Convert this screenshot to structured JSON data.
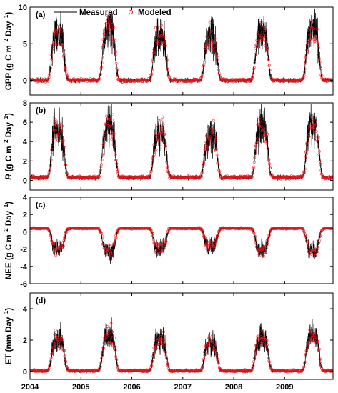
{
  "legend": {
    "measured_label": "Measured",
    "modeled_label": "Modeled",
    "measured_color": "#000000",
    "modeled_color": "#e8161b"
  },
  "chart_data": [
    {
      "type": "line",
      "panel_tag": "(a)",
      "ylabel_parts": [
        "GPP (g C m",
        "−2",
        " Day",
        "−1",
        ")"
      ],
      "ylim": [
        -2,
        10
      ],
      "yticks": [
        0,
        5,
        10
      ],
      "peak": 6.3,
      "base": 0.0,
      "series": [
        {
          "name": "Measured",
          "style": "line"
        },
        {
          "name": "Modeled",
          "style": "marker"
        }
      ]
    },
    {
      "type": "line",
      "panel_tag": "(b)",
      "ylabel_parts": [
        "R",
        " (g C m",
        "−2",
        " Day",
        "−1",
        ")"
      ],
      "ylim": [
        -1,
        8
      ],
      "yticks": [
        0,
        2,
        4,
        6,
        8
      ],
      "peak": 5.2,
      "base": 0.3,
      "series": [
        {
          "name": "Measured",
          "style": "line"
        },
        {
          "name": "Modeled",
          "style": "marker"
        }
      ]
    },
    {
      "type": "line",
      "panel_tag": "(c)",
      "ylabel_parts": [
        "NEE (g C m",
        "−2",
        " Day",
        "−1",
        ")"
      ],
      "ylim": [
        -6,
        4
      ],
      "yticks": [
        -6,
        -4,
        -2,
        0,
        2,
        4
      ],
      "peak": -2.0,
      "base": 0.4,
      "series": [
        {
          "name": "Measured",
          "style": "line"
        },
        {
          "name": "Modeled",
          "style": "marker"
        }
      ]
    },
    {
      "type": "line",
      "panel_tag": "(d)",
      "ylabel_parts": [
        "ET (mm Day",
        "−1",
        ")"
      ],
      "ylim": [
        -0.5,
        5
      ],
      "yticks": [
        0,
        2,
        4
      ],
      "peak": 2.1,
      "base": 0.05,
      "series": [
        {
          "name": "Measured",
          "style": "line"
        },
        {
          "name": "Modeled",
          "style": "marker"
        }
      ]
    }
  ],
  "x_axis": {
    "range": [
      2004.0,
      2009.95
    ],
    "ticks": [
      "2004",
      "2005",
      "2006",
      "2007",
      "2008",
      "2009"
    ]
  }
}
